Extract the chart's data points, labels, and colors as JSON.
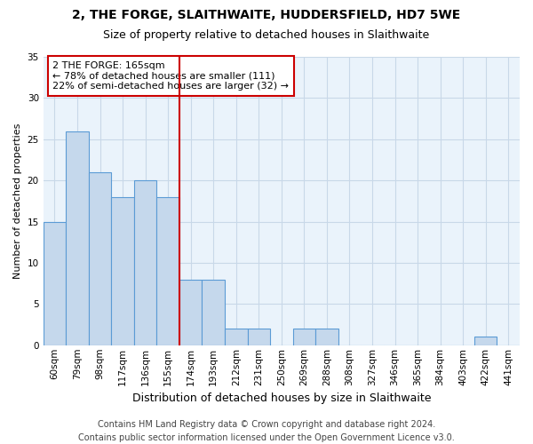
{
  "title1": "2, THE FORGE, SLAITHWAITE, HUDDERSFIELD, HD7 5WE",
  "title2": "Size of property relative to detached houses in Slaithwaite",
  "xlabel": "Distribution of detached houses by size in Slaithwaite",
  "ylabel": "Number of detached properties",
  "categories": [
    "60sqm",
    "79sqm",
    "98sqm",
    "117sqm",
    "136sqm",
    "155sqm",
    "174sqm",
    "193sqm",
    "212sqm",
    "231sqm",
    "250sqm",
    "269sqm",
    "288sqm",
    "308sqm",
    "327sqm",
    "346sqm",
    "365sqm",
    "384sqm",
    "403sqm",
    "422sqm",
    "441sqm"
  ],
  "values": [
    15,
    26,
    21,
    18,
    20,
    18,
    8,
    8,
    2,
    2,
    0,
    2,
    2,
    0,
    0,
    0,
    0,
    0,
    0,
    1,
    0
  ],
  "bar_color": "#c5d8ec",
  "bar_edge_color": "#5b9bd5",
  "vline_x": 5.5,
  "vline_color": "#cc0000",
  "annotation_text": "2 THE FORGE: 165sqm\n← 78% of detached houses are smaller (111)\n22% of semi-detached houses are larger (32) →",
  "annotation_box_color": "#ffffff",
  "annotation_box_edge": "#cc0000",
  "ylim": [
    0,
    35
  ],
  "yticks": [
    0,
    5,
    10,
    15,
    20,
    25,
    30,
    35
  ],
  "footnote": "Contains HM Land Registry data © Crown copyright and database right 2024.\nContains public sector information licensed under the Open Government Licence v3.0.",
  "background_color": "#ffffff",
  "plot_bg_color": "#eaf3fb",
  "grid_color": "#c8d8e8",
  "title1_fontsize": 10,
  "title2_fontsize": 9,
  "xlabel_fontsize": 9,
  "ylabel_fontsize": 8,
  "tick_fontsize": 7.5,
  "annot_fontsize": 8,
  "footnote_fontsize": 7
}
